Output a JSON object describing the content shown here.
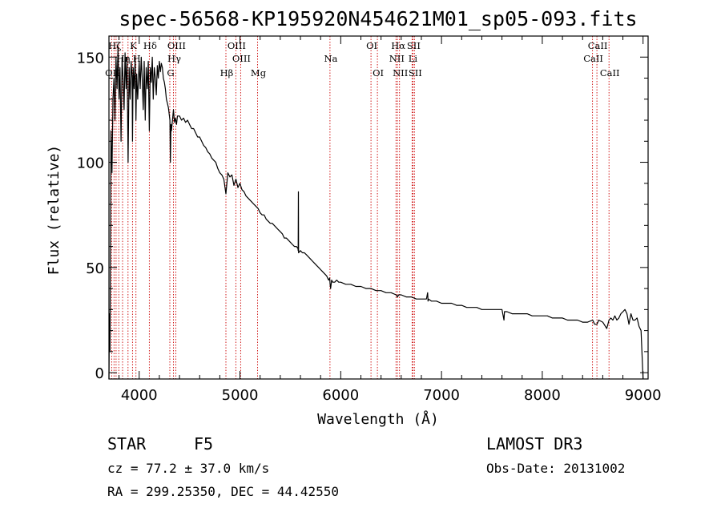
{
  "chart_data": {
    "type": "line",
    "title": "spec-56568-KP195920N454621M01_sp05-093.fits",
    "xlabel": "Wavelength (Å)",
    "ylabel": "Flux (relative)",
    "xlim": [
      3700,
      9050
    ],
    "ylim": [
      -3,
      160
    ],
    "xticks": [
      4000,
      5000,
      6000,
      7000,
      8000,
      9000
    ],
    "yticks": [
      0,
      50,
      100,
      150
    ],
    "xtick_labels": [
      "4000",
      "5000",
      "6000",
      "7000",
      "8000",
      "9000"
    ],
    "ytick_labels": [
      "0",
      "50",
      "100",
      "150"
    ],
    "series": [
      {
        "name": "flux",
        "x": [
          3700,
          3705,
          3710,
          3720,
          3730,
          3740,
          3750,
          3760,
          3770,
          3780,
          3790,
          3800,
          3810,
          3820,
          3830,
          3840,
          3850,
          3860,
          3870,
          3880,
          3890,
          3900,
          3910,
          3920,
          3930,
          3934,
          3940,
          3950,
          3960,
          3968,
          3975,
          3985,
          4000,
          4010,
          4020,
          4030,
          4040,
          4050,
          4060,
          4070,
          4080,
          4090,
          4101,
          4110,
          4120,
          4130,
          4140,
          4150,
          4160,
          4170,
          4180,
          4190,
          4200,
          4210,
          4220,
          4230,
          4240,
          4250,
          4260,
          4270,
          4280,
          4290,
          4300,
          4305,
          4310,
          4315,
          4320,
          4330,
          4340,
          4350,
          4360,
          4370,
          4380,
          4400,
          4420,
          4440,
          4460,
          4480,
          4500,
          4520,
          4540,
          4560,
          4580,
          4600,
          4620,
          4640,
          4660,
          4680,
          4700,
          4720,
          4740,
          4760,
          4780,
          4800,
          4820,
          4840,
          4861,
          4880,
          4900,
          4920,
          4940,
          4960,
          4980,
          5000,
          5020,
          5040,
          5060,
          5080,
          5100,
          5120,
          5140,
          5160,
          5180,
          5200,
          5220,
          5240,
          5260,
          5280,
          5300,
          5320,
          5340,
          5360,
          5380,
          5400,
          5420,
          5440,
          5460,
          5480,
          5500,
          5520,
          5540,
          5560,
          5576,
          5578,
          5580,
          5582,
          5600,
          5620,
          5640,
          5660,
          5680,
          5700,
          5720,
          5740,
          5760,
          5780,
          5800,
          5820,
          5840,
          5860,
          5880,
          5890,
          5895,
          5900,
          5910,
          5920,
          5940,
          5960,
          5980,
          6000,
          6050,
          6100,
          6150,
          6200,
          6250,
          6300,
          6350,
          6400,
          6450,
          6500,
          6550,
          6563,
          6575,
          6600,
          6650,
          6700,
          6750,
          6800,
          6850,
          6862,
          6866,
          6870,
          6900,
          6950,
          7000,
          7050,
          7100,
          7150,
          7200,
          7250,
          7300,
          7350,
          7400,
          7450,
          7500,
          7550,
          7600,
          7620,
          7625,
          7630,
          7650,
          7700,
          7750,
          7800,
          7850,
          7900,
          7950,
          8000,
          8050,
          8100,
          8150,
          8200,
          8250,
          8300,
          8350,
          8400,
          8450,
          8500,
          8520,
          8542,
          8560,
          8600,
          8640,
          8662,
          8680,
          8700,
          8720,
          8740,
          8760,
          8780,
          8800,
          8820,
          8840,
          8860,
          8880,
          8900,
          8920,
          8940,
          8960,
          8980,
          9000
        ],
        "y": [
          -3,
          28,
          10,
          115,
          95,
          130,
          140,
          120,
          150,
          135,
          155,
          130,
          145,
          110,
          150,
          140,
          125,
          152,
          135,
          150,
          100,
          145,
          130,
          148,
          140,
          110,
          145,
          135,
          150,
          120,
          142,
          130,
          148,
          135,
          150,
          140,
          125,
          148,
          120,
          145,
          135,
          148,
          115,
          145,
          138,
          150,
          130,
          145,
          140,
          132,
          146,
          140,
          148,
          143,
          147,
          145,
          140,
          138,
          135,
          130,
          128,
          126,
          122,
          120,
          100,
          118,
          115,
          120,
          125,
          119,
          121,
          118,
          122,
          122,
          120,
          121,
          119,
          120,
          118,
          116,
          116,
          114,
          112,
          112,
          110,
          108,
          107,
          105,
          104,
          102,
          101,
          100,
          97,
          95,
          94,
          92,
          85,
          95,
          93,
          94,
          89,
          92,
          88,
          90,
          87,
          86,
          84,
          83,
          82,
          81,
          80,
          79,
          78,
          76,
          75,
          75,
          73,
          72,
          71,
          71,
          70,
          69,
          68,
          67,
          66,
          64,
          64,
          63,
          62,
          61,
          60,
          60,
          59,
          58,
          86,
          57,
          58,
          57,
          57,
          56,
          55,
          54,
          53,
          52,
          51,
          50,
          49,
          48,
          47,
          46,
          44,
          45,
          42,
          40,
          44,
          43,
          43,
          44,
          43,
          43,
          42,
          42,
          41,
          41,
          40,
          40,
          39,
          39,
          38,
          38,
          37,
          36,
          37,
          37,
          36,
          36,
          35,
          35,
          35,
          38,
          34,
          35,
          34,
          34,
          33,
          33,
          33,
          32,
          32,
          31,
          31,
          31,
          30,
          30,
          30,
          30,
          30,
          25,
          29,
          29,
          29,
          28,
          28,
          28,
          28,
          27,
          27,
          27,
          27,
          26,
          26,
          26,
          25,
          25,
          25,
          24,
          24,
          25,
          23,
          23,
          25,
          24,
          21,
          25,
          26,
          25,
          27,
          25,
          26,
          28,
          29,
          30,
          28,
          23,
          28,
          25,
          25,
          26,
          22,
          20,
          -3
        ]
      }
    ],
    "line_markers": [
      {
        "label": "Hζ",
        "wavelength": 3750,
        "row": 0
      },
      {
        "label": "K",
        "wavelength": 3934,
        "row": 0
      },
      {
        "label": "Hδ",
        "wavelength": 4101,
        "row": 0
      },
      {
        "label": "OIII",
        "wavelength": 4363,
        "row": 0
      },
      {
        "label": "OIII",
        "wavelength": 4959,
        "row": 0
      },
      {
        "label": "OI",
        "wavelength": 6300,
        "row": 0
      },
      {
        "label": "Hα",
        "wavelength": 6563,
        "row": 0
      },
      {
        "label": "SII",
        "wavelength": 6716,
        "row": 0
      },
      {
        "label": "CaII",
        "wavelength": 8542,
        "row": 0
      },
      {
        "label": "Hη",
        "wavelength": 3835,
        "row": 1
      },
      {
        "label": "H",
        "wavelength": 3968,
        "row": 1
      },
      {
        "label": "Hγ",
        "wavelength": 4340,
        "row": 1
      },
      {
        "label": "OIII",
        "wavelength": 5007,
        "row": 1
      },
      {
        "label": "Na",
        "wavelength": 5893,
        "row": 1
      },
      {
        "label": "NII",
        "wavelength": 6548,
        "row": 1
      },
      {
        "label": "Li",
        "wavelength": 6708,
        "row": 1
      },
      {
        "label": "CaII",
        "wavelength": 8498,
        "row": 1
      },
      {
        "label": "OII",
        "wavelength": 3727,
        "row": 2
      },
      {
        "label": "Hβ",
        "wavelength": 4861,
        "row": 2
      },
      {
        "label": "G",
        "wavelength": 4304,
        "row": 2
      },
      {
        "label": "Mg",
        "wavelength": 5175,
        "row": 2
      },
      {
        "label": "OI",
        "wavelength": 6364,
        "row": 2
      },
      {
        "label": "NII",
        "wavelength": 6583,
        "row": 2
      },
      {
        "label": "SII",
        "wavelength": 6731,
        "row": 2
      },
      {
        "label": "CaII",
        "wavelength": 8662,
        "row": 2
      }
    ],
    "marker_lines": [
      3727,
      3750,
      3771,
      3798,
      3835,
      3889,
      3934,
      3968,
      4101,
      4304,
      4340,
      4363,
      4861,
      4959,
      5007,
      5175,
      5893,
      6300,
      6364,
      6548,
      6563,
      6583,
      6708,
      6716,
      6731,
      8498,
      8542,
      8662
    ],
    "marker_color": "#cc0000",
    "line_color": "#000000"
  },
  "info": {
    "object_class": "STAR",
    "subclass": "F5",
    "survey": "LAMOST DR3",
    "redshift": "cz = 77.2 ± 37.0 km/s",
    "obs_date": "Obs-Date: 20131002",
    "coords": "RA = 299.25350, DEC =  44.42550"
  }
}
